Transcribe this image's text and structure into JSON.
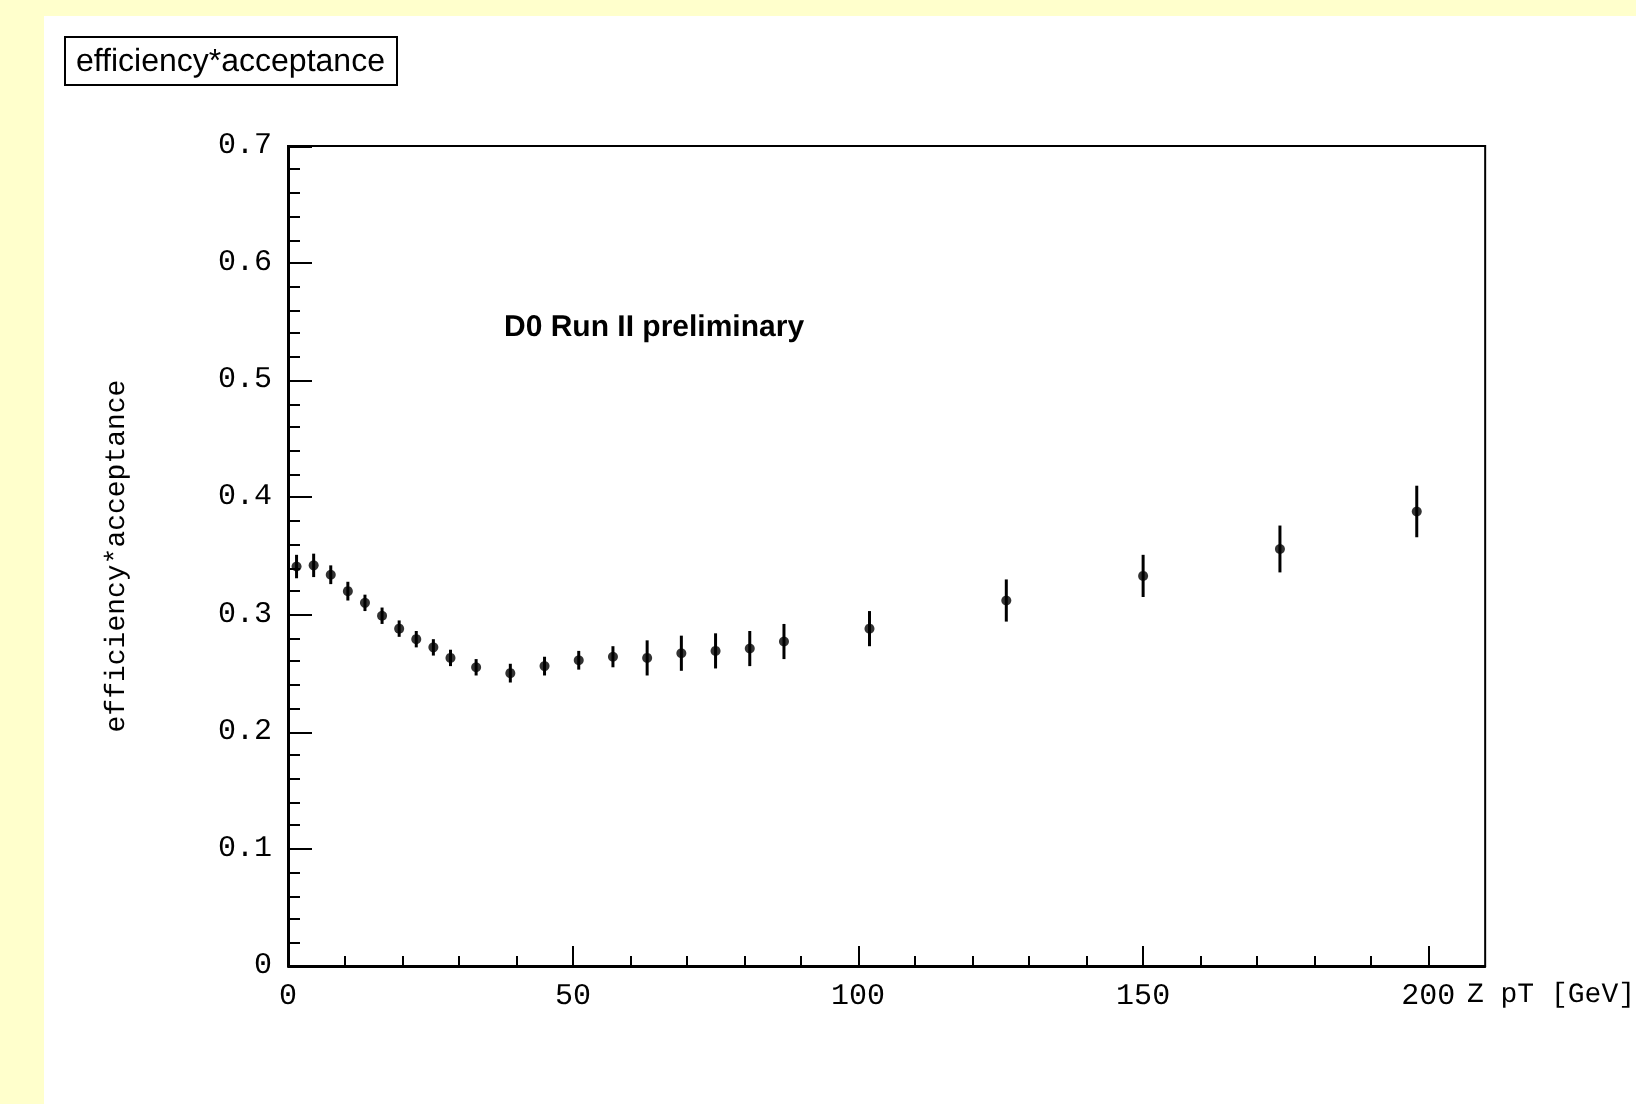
{
  "chart_data": {
    "type": "scatter",
    "title": "efficiency*acceptance",
    "xlabel": "Z pT [GeV]",
    "ylabel": "efficiency*acceptance",
    "annotations": [
      "D0 Run II preliminary"
    ],
    "x": [
      1.5,
      4.5,
      7.5,
      10.5,
      13.5,
      16.5,
      19.5,
      22.5,
      25.5,
      28.5,
      33,
      39,
      45,
      51,
      57,
      63,
      69,
      75,
      81,
      87,
      102,
      126,
      150,
      174,
      198
    ],
    "values": [
      0.341,
      0.342,
      0.334,
      0.32,
      0.31,
      0.299,
      0.288,
      0.279,
      0.272,
      0.263,
      0.255,
      0.25,
      0.256,
      0.261,
      0.264,
      0.263,
      0.267,
      0.269,
      0.271,
      0.277,
      0.288,
      0.312,
      0.333,
      0.356,
      0.388
    ],
    "errors": [
      0.01,
      0.01,
      0.008,
      0.008,
      0.007,
      0.007,
      0.007,
      0.007,
      0.007,
      0.007,
      0.007,
      0.008,
      0.008,
      0.008,
      0.009,
      0.015,
      0.015,
      0.015,
      0.015,
      0.015,
      0.015,
      0.018,
      0.018,
      0.02,
      0.022
    ],
    "color": "#000000",
    "marker": "circle",
    "xlim": [
      0,
      210
    ],
    "xticks": [
      0,
      50,
      100,
      150,
      200
    ],
    "ylim": [
      0,
      0.7
    ],
    "yticks": [
      0,
      0.1,
      0.2,
      0.3,
      0.4,
      0.5,
      0.6,
      0.7
    ],
    "grid": false
  }
}
